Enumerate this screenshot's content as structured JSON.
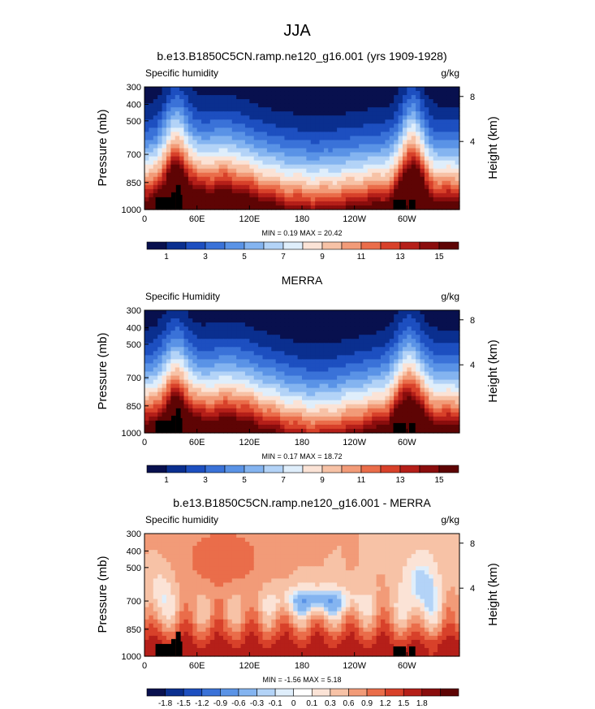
{
  "figure": {
    "title": "JJA",
    "colors": {
      "seq": [
        "#08104e",
        "#0a2f8f",
        "#1d4fc0",
        "#3a72d8",
        "#5a93e6",
        "#84b4f0",
        "#b3d3f7",
        "#dfeefb",
        "#fbe3d6",
        "#f7c2a6",
        "#f29b78",
        "#ea6d4a",
        "#d8412a",
        "#b51f19",
        "#8a0d0d",
        "#5e0404"
      ],
      "div": [
        "#08104e",
        "#0a2f8f",
        "#1d4fc0",
        "#3a72d8",
        "#5a93e6",
        "#84b4f0",
        "#b3d3f7",
        "#dfeefb",
        "#ffffff",
        "#fbe3d6",
        "#f7c2a6",
        "#f29b78",
        "#ea6d4a",
        "#d8412a",
        "#b51f19",
        "#8a0d0d",
        "#5e0404"
      ]
    }
  },
  "chart_data": [
    {
      "type": "heatmap",
      "title": "b.e13.B1850C5CN.ramp.ne120_g16.001 (yrs 1909-1928)",
      "left_label": "Specific humidity",
      "right_label": "g/kg",
      "ylabel": "Pressure (mb)",
      "ylabel_right": "Height (km)",
      "x_ticks": [
        "0",
        "60E",
        "120E",
        "180",
        "120W",
        "60W"
      ],
      "y_ticks": [
        "300",
        "400",
        "500",
        "700",
        "850",
        "1000"
      ],
      "height_ticks": [
        "8",
        "4"
      ],
      "min_max_text": "MIN =   0.19  MAX =  20.42",
      "levels": [
        "1",
        "3",
        "5",
        "7",
        "9",
        "11",
        "13",
        "15"
      ],
      "min": 0.19,
      "max": 20.42
    },
    {
      "type": "heatmap",
      "title": "MERRA",
      "left_label": "Specific Humidity",
      "right_label": "g/kg",
      "ylabel": "Pressure (mb)",
      "ylabel_right": "Height (km)",
      "x_ticks": [
        "0",
        "60E",
        "120E",
        "180",
        "120W",
        "60W"
      ],
      "y_ticks": [
        "300",
        "400",
        "500",
        "700",
        "850",
        "1000"
      ],
      "height_ticks": [
        "8",
        "4"
      ],
      "min_max_text": "MIN =   0.17  MAX =  18.72",
      "levels": [
        "1",
        "3",
        "5",
        "7",
        "9",
        "11",
        "13",
        "15"
      ],
      "min": 0.17,
      "max": 18.72
    },
    {
      "type": "heatmap",
      "title": "b.e13.B1850C5CN.ramp.ne120_g16.001 - MERRA",
      "left_label": "Specific humidity",
      "right_label": "g/kg",
      "ylabel": "Pressure (mb)",
      "ylabel_right": "Height (km)",
      "x_ticks": [
        "0",
        "60E",
        "120E",
        "180",
        "120W",
        "60W"
      ],
      "y_ticks": [
        "300",
        "400",
        "500",
        "700",
        "850",
        "1000"
      ],
      "height_ticks": [
        "8",
        "4"
      ],
      "min_max_text": "MIN =  -1.56  MAX =   5.18",
      "levels": [
        "-1.8",
        "-1.5",
        "-1.2",
        "-0.9",
        "-0.6",
        "-0.3",
        "-0.1",
        "0",
        "0.1",
        "0.3",
        "0.6",
        "0.9",
        "1.2",
        "1.5",
        "1.8"
      ],
      "min": -1.56,
      "max": 5.18
    }
  ]
}
